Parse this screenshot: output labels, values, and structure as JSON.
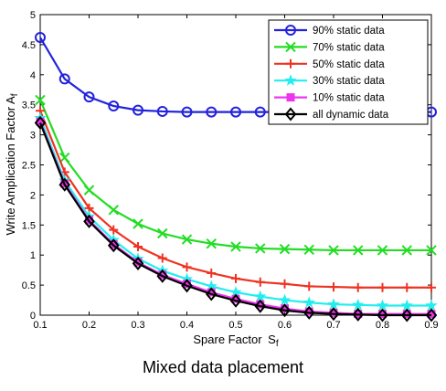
{
  "caption": "Mixed data placement",
  "chart_data": {
    "type": "line",
    "title": "",
    "xlabel": "Spare Factor",
    "xlabel_sub": "f",
    "xlabel_main": "S",
    "ylabel_main": "Write Amplication Factor A",
    "ylabel_sub": "f",
    "xlim": [
      0.1,
      0.9
    ],
    "ylim": [
      0,
      5
    ],
    "xticks": [
      0.1,
      0.2,
      0.3,
      0.4,
      0.5,
      0.6,
      0.7,
      0.8,
      0.9
    ],
    "xtick_labels": [
      "0.1",
      "0.2",
      "0.3",
      "0.4",
      "0.5",
      "0.6",
      "0.7",
      "0.8",
      "0.9"
    ],
    "yticks": [
      0,
      0.5,
      1,
      1.5,
      2,
      2.5,
      3,
      3.5,
      4,
      4.5,
      5
    ],
    "ytick_labels": [
      "0",
      "0.5",
      "1",
      "1.5",
      "2",
      "2.5",
      "3",
      "3.5",
      "4",
      "4.5",
      "5"
    ],
    "grid": false,
    "legend_position": "top-right",
    "x": [
      0.1,
      0.15,
      0.2,
      0.25,
      0.3,
      0.35,
      0.4,
      0.45,
      0.5,
      0.55,
      0.6,
      0.65,
      0.7,
      0.75,
      0.8,
      0.85,
      0.9
    ],
    "series": [
      {
        "name": "90% static data",
        "color": "#2222dd",
        "marker": "circle",
        "values": [
          4.62,
          3.93,
          3.63,
          3.48,
          3.41,
          3.39,
          3.38,
          3.38,
          3.38,
          3.38,
          3.38,
          3.38,
          3.38,
          3.38,
          3.38,
          3.38,
          3.38
        ]
      },
      {
        "name": "70% static data",
        "color": "#22dd22",
        "marker": "x",
        "values": [
          3.58,
          2.62,
          2.08,
          1.75,
          1.52,
          1.36,
          1.26,
          1.19,
          1.14,
          1.11,
          1.1,
          1.09,
          1.08,
          1.08,
          1.08,
          1.08,
          1.08
        ]
      },
      {
        "name": "50% static data",
        "color": "#ee3322",
        "marker": "plus",
        "values": [
          3.4,
          2.38,
          1.78,
          1.42,
          1.14,
          0.95,
          0.8,
          0.7,
          0.61,
          0.55,
          0.52,
          0.48,
          0.47,
          0.46,
          0.46,
          0.46,
          0.46
        ]
      },
      {
        "name": "30% static data",
        "color": "#22eeee",
        "marker": "star",
        "values": [
          3.28,
          2.24,
          1.64,
          1.25,
          0.94,
          0.74,
          0.6,
          0.48,
          0.38,
          0.31,
          0.25,
          0.21,
          0.18,
          0.17,
          0.16,
          0.16,
          0.16
        ]
      },
      {
        "name": "10% static data",
        "color": "#ee33ee",
        "marker": "square",
        "values": [
          3.22,
          2.19,
          1.58,
          1.18,
          0.88,
          0.67,
          0.52,
          0.38,
          0.27,
          0.18,
          0.11,
          0.06,
          0.04,
          0.02,
          0.02,
          0.02,
          0.02
        ]
      },
      {
        "name": "all dynamic data",
        "color": "#000000",
        "marker": "diamond",
        "values": [
          3.2,
          2.17,
          1.56,
          1.16,
          0.86,
          0.65,
          0.49,
          0.35,
          0.24,
          0.15,
          0.08,
          0.04,
          0.02,
          0.01,
          0.0,
          0.0,
          0.0
        ]
      }
    ]
  }
}
